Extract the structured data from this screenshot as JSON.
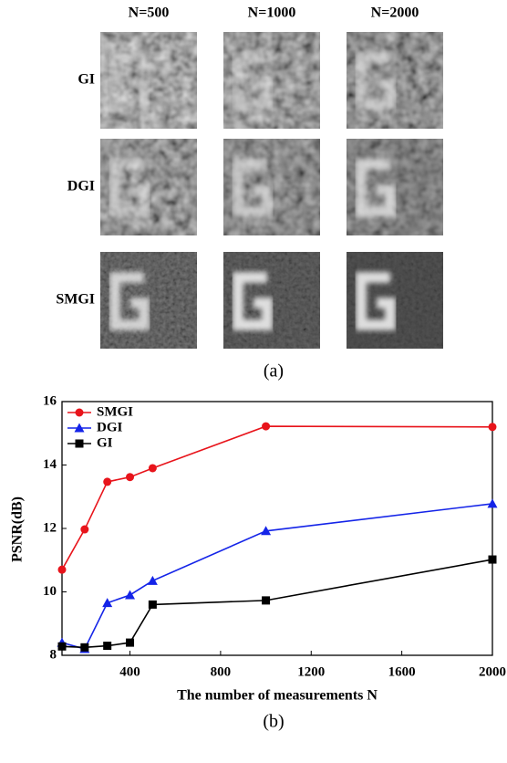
{
  "panel_a": {
    "columns": [
      "N=500",
      "N=1000",
      "N=2000"
    ],
    "rows": [
      "GI",
      "DGI",
      "SMGI"
    ],
    "caption": "(a)"
  },
  "chart_data": {
    "type": "line",
    "xlabel": "The number of measurements N",
    "ylabel": "PSNR(dB)",
    "x": [
      100,
      200,
      300,
      400,
      500,
      1000,
      2000
    ],
    "series": [
      {
        "name": "SMGI",
        "color": "#e8141b",
        "marker": "circle",
        "values": [
          10.7,
          11.97,
          13.47,
          13.62,
          13.9,
          15.22,
          15.2
        ]
      },
      {
        "name": "DGI",
        "color": "#1424e8",
        "marker": "triangle",
        "values": [
          8.4,
          8.2,
          9.65,
          9.9,
          10.35,
          11.92,
          12.78
        ]
      },
      {
        "name": "GI",
        "color": "#000000",
        "marker": "square",
        "values": [
          8.28,
          8.25,
          8.3,
          8.4,
          9.6,
          9.73,
          11.02
        ]
      }
    ],
    "xlim": [
      100,
      2000
    ],
    "xticks": [
      400,
      800,
      1200,
      1600,
      2000
    ],
    "ylim": [
      8,
      16
    ],
    "yticks": [
      8,
      10,
      12,
      14,
      16
    ],
    "legend": "upper left",
    "caption": "(b)"
  }
}
